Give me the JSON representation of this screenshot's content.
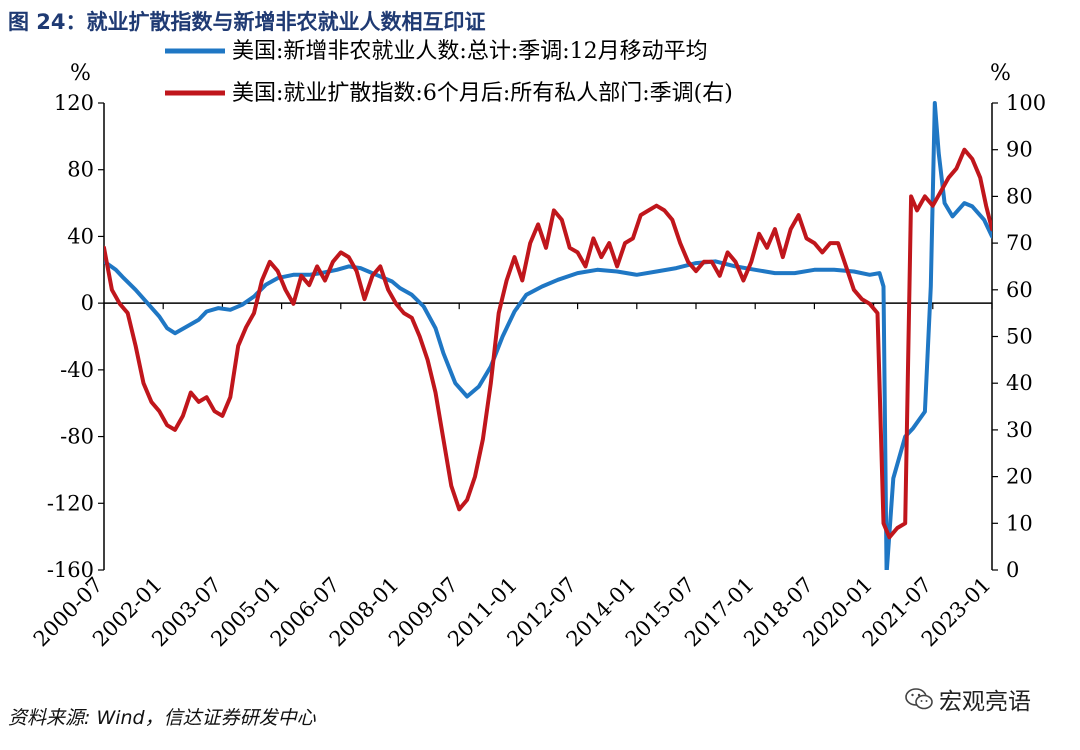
{
  "figure": {
    "title": "图 24：就业扩散指数与新增非农就业人数相互印证",
    "source": "资料来源: Wind，信达证券研发中心",
    "watermark": "宏观亮语"
  },
  "chart_data": {
    "type": "line",
    "title": "就业扩散指数与新增非农就业人数相互印证",
    "left_unit": "%",
    "right_unit": "%",
    "left_axis": {
      "min": -160,
      "max": 120,
      "ticks": [
        120,
        80,
        40,
        0,
        -40,
        -80,
        -120,
        -160
      ]
    },
    "right_axis": {
      "min": 0,
      "max": 100,
      "ticks": [
        100,
        90,
        80,
        70,
        60,
        50,
        40,
        30,
        20,
        10,
        0
      ]
    },
    "x_range": [
      2000.5,
      2023.0
    ],
    "x_ticks": [
      {
        "label": "2000-07",
        "t": 2000.5
      },
      {
        "label": "2002-01",
        "t": 2002.0
      },
      {
        "label": "2003-07",
        "t": 2003.5
      },
      {
        "label": "2005-01",
        "t": 2005.0
      },
      {
        "label": "2006-07",
        "t": 2006.5
      },
      {
        "label": "2008-01",
        "t": 2008.0
      },
      {
        "label": "2009-07",
        "t": 2009.5
      },
      {
        "label": "2011-01",
        "t": 2011.0
      },
      {
        "label": "2012-07",
        "t": 2012.5
      },
      {
        "label": "2014-01",
        "t": 2014.0
      },
      {
        "label": "2015-07",
        "t": 2015.5
      },
      {
        "label": "2017-01",
        "t": 2017.0
      },
      {
        "label": "2018-07",
        "t": 2018.5
      },
      {
        "label": "2020-01",
        "t": 2020.0
      },
      {
        "label": "2021-07",
        "t": 2021.5
      },
      {
        "label": "2023-01",
        "t": 2023.0
      }
    ],
    "series": [
      {
        "name": "美国:新增非农就业人数:总计:季调:12月移动平均",
        "axis": "left",
        "color": "#1f77c4",
        "points": [
          [
            2000.5,
            25
          ],
          [
            2000.8,
            20
          ],
          [
            2001.0,
            15
          ],
          [
            2001.3,
            8
          ],
          [
            2001.6,
            0
          ],
          [
            2001.9,
            -8
          ],
          [
            2002.1,
            -15
          ],
          [
            2002.3,
            -18
          ],
          [
            2002.6,
            -14
          ],
          [
            2002.9,
            -10
          ],
          [
            2003.1,
            -5
          ],
          [
            2003.4,
            -3
          ],
          [
            2003.7,
            -4
          ],
          [
            2004.0,
            -1
          ],
          [
            2004.3,
            4
          ],
          [
            2004.6,
            11
          ],
          [
            2004.9,
            15
          ],
          [
            2005.3,
            17
          ],
          [
            2005.7,
            17
          ],
          [
            2006.0,
            18
          ],
          [
            2006.4,
            20
          ],
          [
            2006.7,
            22
          ],
          [
            2007.0,
            21
          ],
          [
            2007.4,
            17
          ],
          [
            2007.8,
            13
          ],
          [
            2008.0,
            9
          ],
          [
            2008.3,
            5
          ],
          [
            2008.6,
            -2
          ],
          [
            2008.9,
            -15
          ],
          [
            2009.1,
            -30
          ],
          [
            2009.4,
            -48
          ],
          [
            2009.7,
            -56
          ],
          [
            2010.0,
            -50
          ],
          [
            2010.3,
            -38
          ],
          [
            2010.6,
            -20
          ],
          [
            2010.9,
            -5
          ],
          [
            2011.2,
            5
          ],
          [
            2011.6,
            10
          ],
          [
            2012.0,
            14
          ],
          [
            2012.5,
            18
          ],
          [
            2013.0,
            20
          ],
          [
            2013.5,
            19
          ],
          [
            2014.0,
            17
          ],
          [
            2014.5,
            19
          ],
          [
            2015.0,
            21
          ],
          [
            2015.5,
            24
          ],
          [
            2016.0,
            25
          ],
          [
            2016.5,
            22
          ],
          [
            2017.0,
            20
          ],
          [
            2017.5,
            18
          ],
          [
            2018.0,
            18
          ],
          [
            2018.5,
            20
          ],
          [
            2019.0,
            20
          ],
          [
            2019.5,
            19
          ],
          [
            2019.9,
            17
          ],
          [
            2020.15,
            18
          ],
          [
            2020.25,
            10
          ],
          [
            2020.33,
            -162
          ],
          [
            2020.5,
            -105
          ],
          [
            2020.8,
            -80
          ],
          [
            2021.0,
            -75
          ],
          [
            2021.3,
            -65
          ],
          [
            2021.45,
            10
          ],
          [
            2021.55,
            120
          ],
          [
            2021.65,
            90
          ],
          [
            2021.8,
            60
          ],
          [
            2022.0,
            52
          ],
          [
            2022.3,
            60
          ],
          [
            2022.5,
            58
          ],
          [
            2022.8,
            50
          ],
          [
            2023.0,
            40
          ]
        ]
      },
      {
        "name": "美国:就业扩散指数:6个月后:所有私人部门:季调(右)",
        "axis": "right",
        "color": "#c0161c",
        "points": [
          [
            2000.5,
            69
          ],
          [
            2000.7,
            60
          ],
          [
            2000.9,
            57
          ],
          [
            2001.1,
            55
          ],
          [
            2001.3,
            48
          ],
          [
            2001.5,
            40
          ],
          [
            2001.7,
            36
          ],
          [
            2001.9,
            34
          ],
          [
            2002.1,
            31
          ],
          [
            2002.3,
            30
          ],
          [
            2002.5,
            33
          ],
          [
            2002.7,
            38
          ],
          [
            2002.9,
            36
          ],
          [
            2003.1,
            37
          ],
          [
            2003.3,
            34
          ],
          [
            2003.5,
            33
          ],
          [
            2003.7,
            37
          ],
          [
            2003.9,
            48
          ],
          [
            2004.1,
            52
          ],
          [
            2004.3,
            55
          ],
          [
            2004.5,
            62
          ],
          [
            2004.7,
            66
          ],
          [
            2004.9,
            64
          ],
          [
            2005.1,
            60
          ],
          [
            2005.3,
            57
          ],
          [
            2005.5,
            63
          ],
          [
            2005.7,
            61
          ],
          [
            2005.9,
            65
          ],
          [
            2006.1,
            62
          ],
          [
            2006.3,
            66
          ],
          [
            2006.5,
            68
          ],
          [
            2006.7,
            67
          ],
          [
            2006.9,
            64
          ],
          [
            2007.1,
            58
          ],
          [
            2007.3,
            63
          ],
          [
            2007.5,
            65
          ],
          [
            2007.7,
            60
          ],
          [
            2007.9,
            57
          ],
          [
            2008.1,
            55
          ],
          [
            2008.3,
            54
          ],
          [
            2008.5,
            50
          ],
          [
            2008.7,
            45
          ],
          [
            2008.9,
            38
          ],
          [
            2009.1,
            28
          ],
          [
            2009.3,
            18
          ],
          [
            2009.5,
            13
          ],
          [
            2009.7,
            15
          ],
          [
            2009.9,
            20
          ],
          [
            2010.1,
            28
          ],
          [
            2010.3,
            40
          ],
          [
            2010.5,
            55
          ],
          [
            2010.7,
            62
          ],
          [
            2010.9,
            67
          ],
          [
            2011.1,
            62
          ],
          [
            2011.3,
            70
          ],
          [
            2011.5,
            74
          ],
          [
            2011.7,
            69
          ],
          [
            2011.9,
            77
          ],
          [
            2012.1,
            75
          ],
          [
            2012.3,
            69
          ],
          [
            2012.5,
            68
          ],
          [
            2012.7,
            65
          ],
          [
            2012.9,
            71
          ],
          [
            2013.1,
            67
          ],
          [
            2013.3,
            70
          ],
          [
            2013.5,
            65
          ],
          [
            2013.7,
            70
          ],
          [
            2013.9,
            71
          ],
          [
            2014.1,
            76
          ],
          [
            2014.3,
            77
          ],
          [
            2014.5,
            78
          ],
          [
            2014.7,
            77
          ],
          [
            2014.9,
            75
          ],
          [
            2015.1,
            70
          ],
          [
            2015.3,
            66
          ],
          [
            2015.5,
            64
          ],
          [
            2015.7,
            66
          ],
          [
            2015.9,
            66
          ],
          [
            2016.1,
            63
          ],
          [
            2016.3,
            68
          ],
          [
            2016.5,
            66
          ],
          [
            2016.7,
            62
          ],
          [
            2016.9,
            66
          ],
          [
            2017.1,
            72
          ],
          [
            2017.3,
            69
          ],
          [
            2017.5,
            73
          ],
          [
            2017.7,
            67
          ],
          [
            2017.9,
            73
          ],
          [
            2018.1,
            76
          ],
          [
            2018.3,
            71
          ],
          [
            2018.5,
            70
          ],
          [
            2018.7,
            68
          ],
          [
            2018.9,
            70
          ],
          [
            2019.1,
            70
          ],
          [
            2019.3,
            65
          ],
          [
            2019.5,
            60
          ],
          [
            2019.7,
            58
          ],
          [
            2019.9,
            57
          ],
          [
            2020.1,
            55
          ],
          [
            2020.25,
            10
          ],
          [
            2020.4,
            7
          ],
          [
            2020.6,
            9
          ],
          [
            2020.8,
            10
          ],
          [
            2020.95,
            80
          ],
          [
            2021.1,
            77
          ],
          [
            2021.3,
            80
          ],
          [
            2021.5,
            78
          ],
          [
            2021.7,
            81
          ],
          [
            2021.9,
            84
          ],
          [
            2022.1,
            86
          ],
          [
            2022.3,
            90
          ],
          [
            2022.5,
            88
          ],
          [
            2022.7,
            84
          ],
          [
            2022.85,
            78
          ],
          [
            2023.0,
            73
          ]
        ]
      }
    ]
  }
}
